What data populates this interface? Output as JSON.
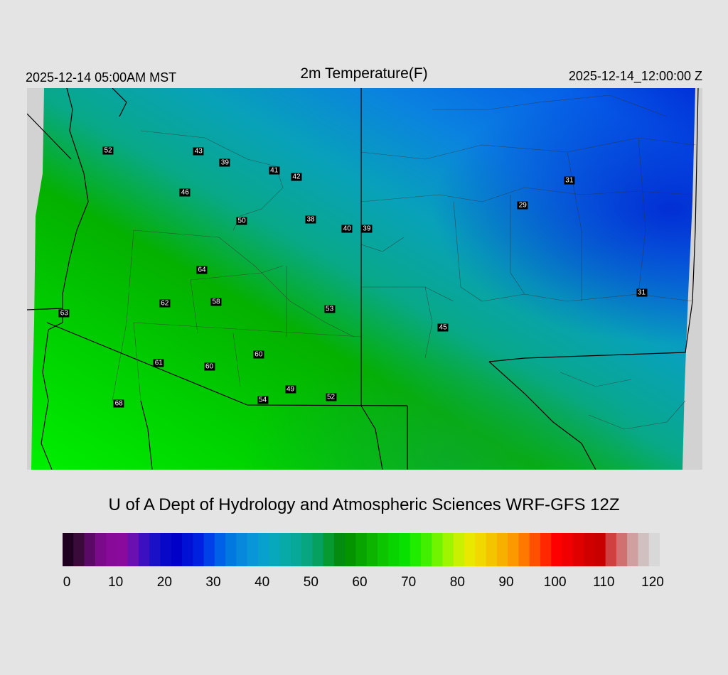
{
  "header": {
    "title": "2m Temperature(F)",
    "local_time": "2025-12-14 05:00AM MST",
    "valid_time": "2025-12-14_12:00:00 Z"
  },
  "credit": "U of A Dept of Hydrology and Atmospheric Sciences WRF-GFS 12Z",
  "colorbar": {
    "min": 0,
    "max": 120,
    "ticks": [
      "0",
      "10",
      "20",
      "30",
      "40",
      "50",
      "60",
      "70",
      "80",
      "90",
      "100",
      "110",
      "120"
    ]
  },
  "station_values": [
    {
      "label": "52",
      "lx": 0.12,
      "ly": 0.164
    },
    {
      "label": "43",
      "lx": 0.254,
      "ly": 0.166
    },
    {
      "label": "39",
      "lx": 0.293,
      "ly": 0.195
    },
    {
      "label": "41",
      "lx": 0.366,
      "ly": 0.216
    },
    {
      "label": "42",
      "lx": 0.399,
      "ly": 0.233
    },
    {
      "label": "46",
      "lx": 0.234,
      "ly": 0.273
    },
    {
      "label": "31",
      "lx": 0.803,
      "ly": 0.242
    },
    {
      "label": "29",
      "lx": 0.734,
      "ly": 0.307
    },
    {
      "label": "50",
      "lx": 0.318,
      "ly": 0.348
    },
    {
      "label": "38",
      "lx": 0.42,
      "ly": 0.344
    },
    {
      "label": "40",
      "lx": 0.474,
      "ly": 0.368
    },
    {
      "label": "39",
      "lx": 0.503,
      "ly": 0.368
    },
    {
      "label": "64",
      "lx": 0.259,
      "ly": 0.477
    },
    {
      "label": "62",
      "lx": 0.204,
      "ly": 0.564
    },
    {
      "label": "58",
      "lx": 0.28,
      "ly": 0.56
    },
    {
      "label": "31",
      "lx": 0.91,
      "ly": 0.536
    },
    {
      "label": "53",
      "lx": 0.448,
      "ly": 0.58
    },
    {
      "label": "63",
      "lx": 0.055,
      "ly": 0.59
    },
    {
      "label": "45",
      "lx": 0.616,
      "ly": 0.628
    },
    {
      "label": "60",
      "lx": 0.343,
      "ly": 0.699
    },
    {
      "label": "61",
      "lx": 0.195,
      "ly": 0.72
    },
    {
      "label": "60",
      "lx": 0.27,
      "ly": 0.73
    },
    {
      "label": "49",
      "lx": 0.39,
      "ly": 0.79
    },
    {
      "label": "54",
      "lx": 0.349,
      "ly": 0.817
    },
    {
      "label": "52",
      "lx": 0.45,
      "ly": 0.81
    },
    {
      "label": "68",
      "lx": 0.136,
      "ly": 0.826
    }
  ]
}
